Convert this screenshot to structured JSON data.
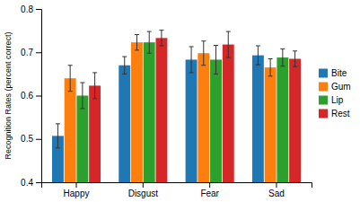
{
  "chart_data": {
    "type": "bar",
    "categories": [
      "Happy",
      "Disgust",
      "Fear",
      "Sad"
    ],
    "series": [
      {
        "name": "Bite",
        "values": [
          0.507,
          0.67,
          0.683,
          0.693
        ],
        "errors": [
          0.028,
          0.02,
          0.03,
          0.022
        ]
      },
      {
        "name": "Gum",
        "values": [
          0.64,
          0.723,
          0.698,
          0.665
        ],
        "errors": [
          0.03,
          0.018,
          0.028,
          0.02
        ]
      },
      {
        "name": "Lip",
        "values": [
          0.6,
          0.723,
          0.683,
          0.688
        ],
        "errors": [
          0.03,
          0.025,
          0.033,
          0.02
        ]
      },
      {
        "name": "Rest",
        "values": [
          0.623,
          0.733,
          0.718,
          0.685
        ],
        "errors": [
          0.03,
          0.018,
          0.03,
          0.018
        ]
      }
    ],
    "y_label": "Recognition Rates (percent correct)",
    "ylim": [
      0.4,
      0.8
    ],
    "yticks": [
      0.4,
      0.5,
      0.6,
      0.7,
      0.8
    ],
    "grid": false,
    "legend": "right"
  }
}
